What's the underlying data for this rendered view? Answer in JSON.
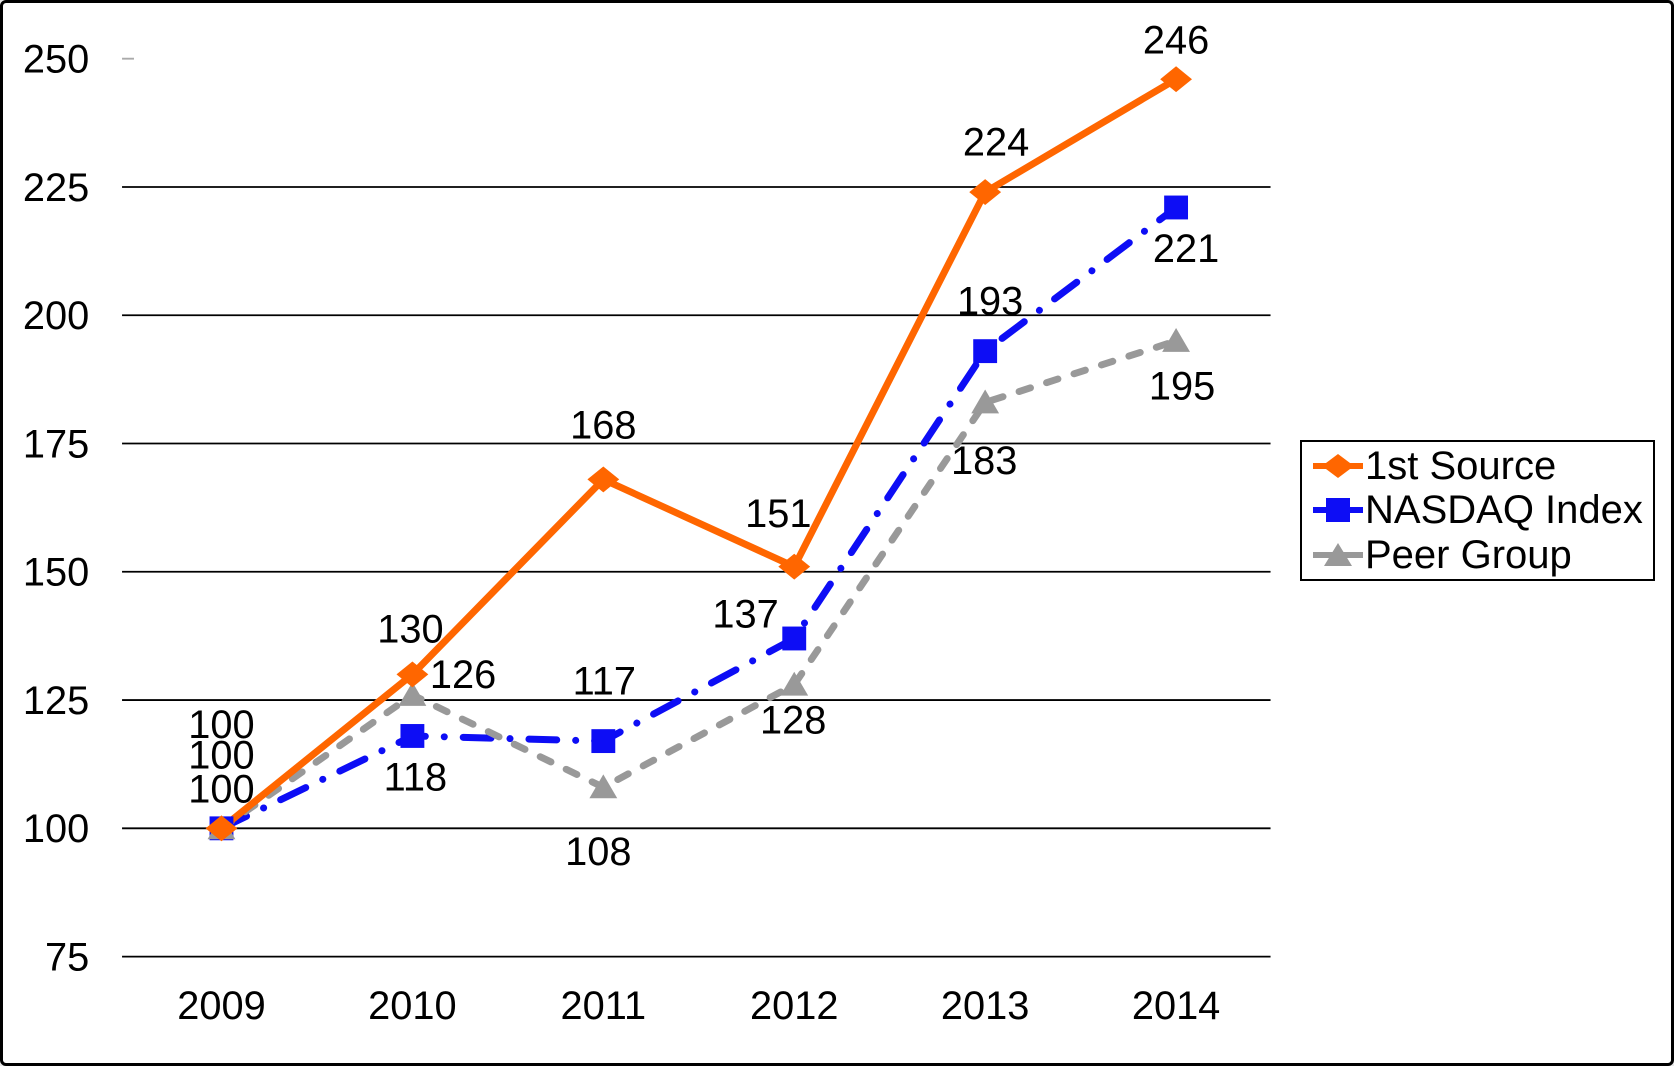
{
  "window": {
    "background_color": "#ffffff",
    "frame_color": "#000000"
  },
  "chart_data": {
    "type": "line",
    "title": "",
    "xlabel": "",
    "ylabel": "",
    "categories": [
      "2009",
      "2010",
      "2011",
      "2012",
      "2013",
      "2014"
    ],
    "yticks": [
      75,
      100,
      125,
      150,
      175,
      200,
      225,
      250
    ],
    "ylim": [
      75,
      250
    ],
    "grid": "horizontal gridlines every 25 units from 75 to 225",
    "gridline_color": "#000000",
    "text_color": "#000000",
    "legend_position": "right, boxed",
    "series": [
      {
        "name": "1st Source",
        "color": "#FF6600",
        "marker": "diamond",
        "line_style": "solid",
        "values": [
          100,
          130,
          168,
          151,
          224,
          246
        ],
        "label_offsets": [
          [
            0,
            -105
          ],
          [
            -2,
            -46
          ],
          [
            0,
            -55
          ],
          [
            -16,
            -54
          ],
          [
            11,
            -51
          ],
          [
            0,
            -40
          ]
        ]
      },
      {
        "name": "NASDAQ Index",
        "color": "#0D0DF5",
        "marker": "square",
        "line_style": "dash-dot",
        "values": [
          100,
          118,
          117,
          137,
          193,
          221
        ],
        "label_offsets": [
          [
            0,
            -74
          ],
          [
            3,
            41
          ],
          [
            1,
            -61
          ],
          [
            -49,
            -25
          ],
          [
            5,
            -51
          ],
          [
            10,
            41
          ]
        ]
      },
      {
        "name": "Peer Group",
        "color": "#999999",
        "marker": "triangle",
        "line_style": "dashed",
        "values": [
          100,
          126,
          108,
          128,
          183,
          195
        ],
        "label_offsets": [
          [
            0,
            -40
          ],
          [
            51,
            -21
          ],
          [
            -5,
            64
          ],
          [
            -1,
            35
          ],
          [
            -1,
            58
          ],
          [
            6,
            45
          ]
        ]
      }
    ]
  }
}
